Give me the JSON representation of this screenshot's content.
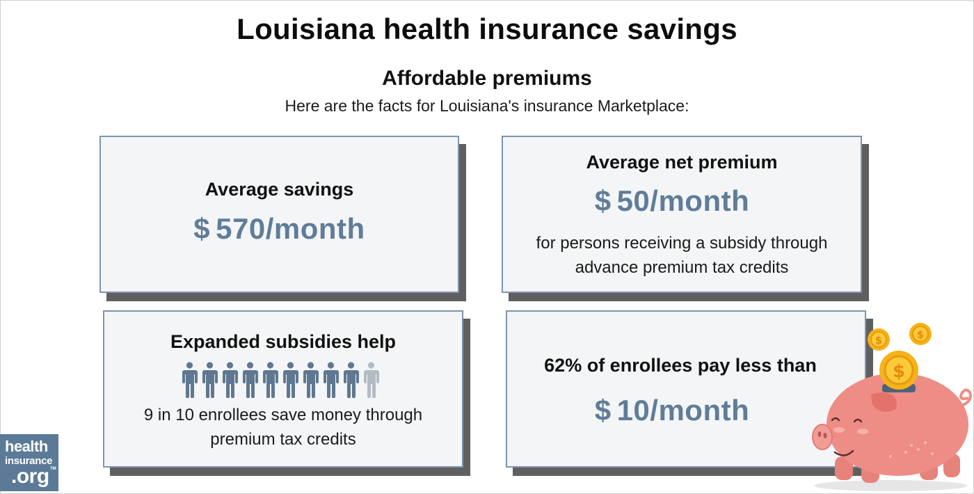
{
  "header": {
    "title": "Louisiana health insurance savings",
    "subtitle": "Affordable premiums",
    "intro": "Here are the facts for Louisiana's insurance Marketplace:"
  },
  "cards": {
    "savings": {
      "heading": "Average savings",
      "currency": "$",
      "amount": "570/month"
    },
    "net_premium": {
      "heading": "Average net premium",
      "currency": "$",
      "amount": "50/month",
      "desc_line1": "for persons receiving a subsidy through",
      "desc_line2": "advance premium tax credits"
    },
    "subsidies": {
      "heading": "Expanded subsidies help",
      "people_total": 10,
      "people_highlighted": 9,
      "desc_line1": "9 in 10 enrollees save money through",
      "desc_line2": "premium tax credits"
    },
    "enrollees": {
      "heading": "62% of enrollees pay less than",
      "currency": "$",
      "amount": "10/month"
    }
  },
  "logo": {
    "line1": "health",
    "line2": "insurance",
    "line3": ".org",
    "tm": "TM"
  },
  "colors": {
    "accent": "#5f7d98",
    "card_border": "#7d95ae",
    "card_bg": "#f4f5f7",
    "person_dark": "#5f7891",
    "person_light": "#b3bcc4",
    "logo_bg": "#5b7a97",
    "pig": "#ee8d86"
  }
}
